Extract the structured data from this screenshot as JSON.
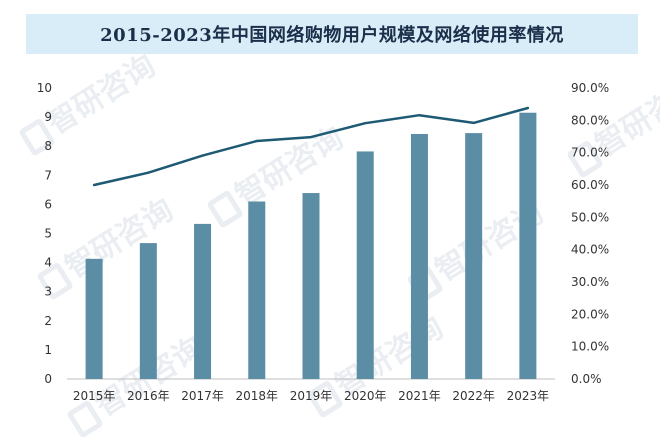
{
  "chart_data": {
    "type": "bar",
    "title": "2015-2023年中国网络购物用户规模及网络使用率情况",
    "categories": [
      "2015年",
      "2016年",
      "2017年",
      "2018年",
      "2019年",
      "2020年",
      "2021年",
      "2022年",
      "2023年"
    ],
    "series": [
      {
        "type": "bar",
        "axis": "left",
        "values": [
          4.13,
          4.67,
          5.33,
          6.1,
          6.39,
          7.82,
          8.42,
          8.45,
          9.15
        ],
        "color": "#5b8da5"
      },
      {
        "type": "line",
        "axis": "right",
        "values": [
          60.0,
          63.8,
          69.1,
          73.6,
          74.8,
          79.1,
          81.6,
          79.2,
          83.8
        ],
        "color": "#1e5a74"
      }
    ],
    "left_axis": {
      "ylim": [
        0,
        10
      ],
      "ticks": [
        "0",
        "1",
        "2",
        "3",
        "4",
        "5",
        "6",
        "7",
        "8",
        "9",
        "10"
      ]
    },
    "right_axis": {
      "ylim": [
        0,
        90
      ],
      "ticks": [
        "0.0%",
        "10.0%",
        "20.0%",
        "30.0%",
        "40.0%",
        "50.0%",
        "60.0%",
        "70.0%",
        "80.0%",
        "90.0%"
      ]
    },
    "grid": false,
    "legend": "none"
  },
  "watermark": {
    "text": "智研咨询"
  }
}
